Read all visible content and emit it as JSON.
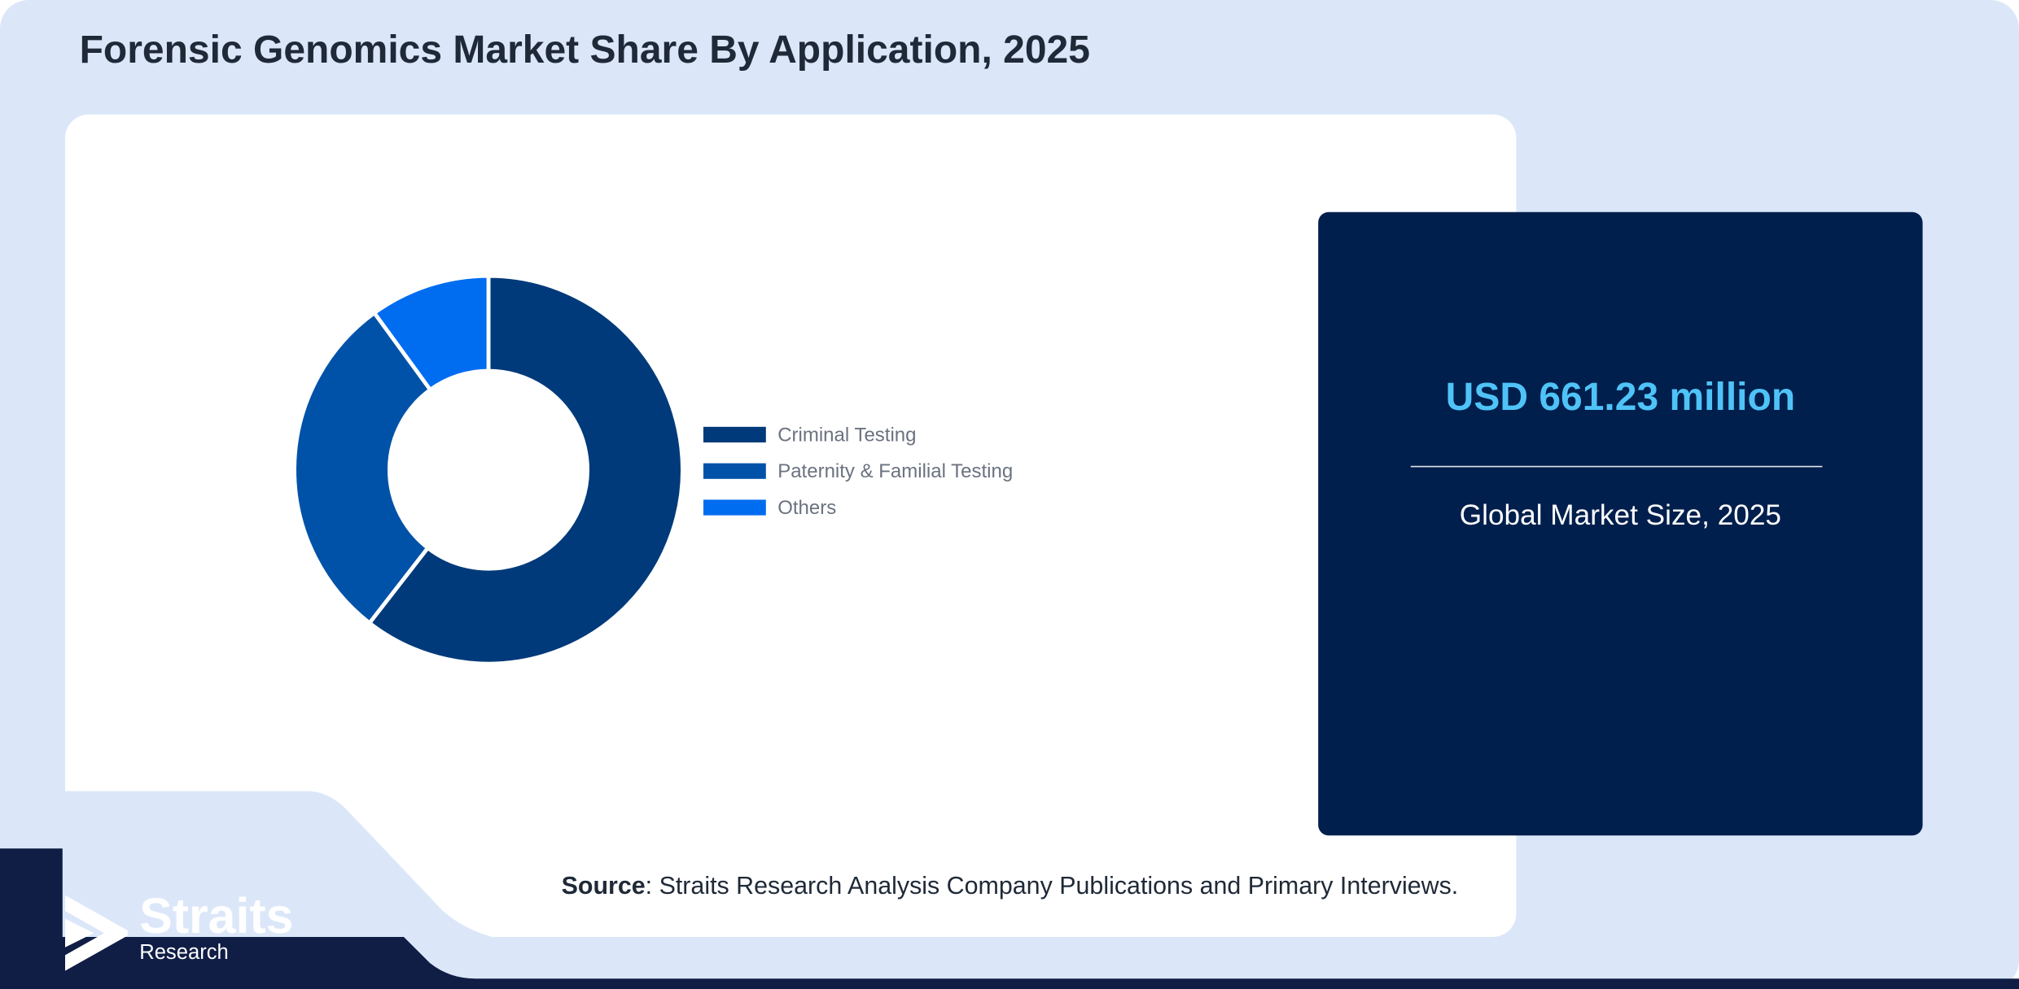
{
  "header": {
    "title": "Forensic Genomics Market Share By Application, 2025"
  },
  "chart_data": {
    "type": "pie",
    "variant": "donut",
    "categories": [
      "Criminal Testing",
      "Paternity & Familial Testing",
      "Others"
    ],
    "values": [
      60.5,
      29.5,
      10.0
    ],
    "unit": "%",
    "colors": [
      "#003a7a",
      "#0052a8",
      "#006cf0"
    ],
    "legend": "right"
  },
  "kpi": {
    "value": "USD 661.23 million",
    "label": "Global Market Size, 2025",
    "value_color": "#4fc3f7",
    "background": "#001f4d"
  },
  "source": {
    "label": "Source",
    "text": ": Straits Research Analysis Company Publications and Primary Interviews."
  },
  "logo": {
    "name": "Straits",
    "sub": "Research"
  },
  "colors": {
    "background": "#dbe7f9",
    "footer": "#101d45"
  }
}
